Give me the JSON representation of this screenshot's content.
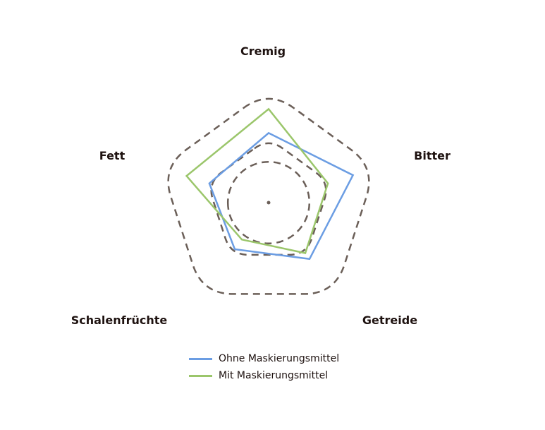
{
  "chart_data": {
    "type": "radar",
    "categories": [
      "Cremig",
      "Bitter",
      "Getreide",
      "Schalenfrüchte",
      "Fett"
    ],
    "rmax": 5,
    "rings": [
      1,
      2.4,
      4.2
    ],
    "series": [
      {
        "name": "Ohne Maskierungsmittel",
        "values": [
          2.9,
          3.7,
          2.9,
          2.4,
          2.6
        ],
        "color": "#6b9de3"
      },
      {
        "name": "Mit Maskierungsmittel",
        "values": [
          3.9,
          2.6,
          2.6,
          1.9,
          3.6
        ],
        "color": "#9bc66b"
      }
    ],
    "ring_color": "#6b5f58",
    "grid": true,
    "legend_position": "bottom"
  }
}
